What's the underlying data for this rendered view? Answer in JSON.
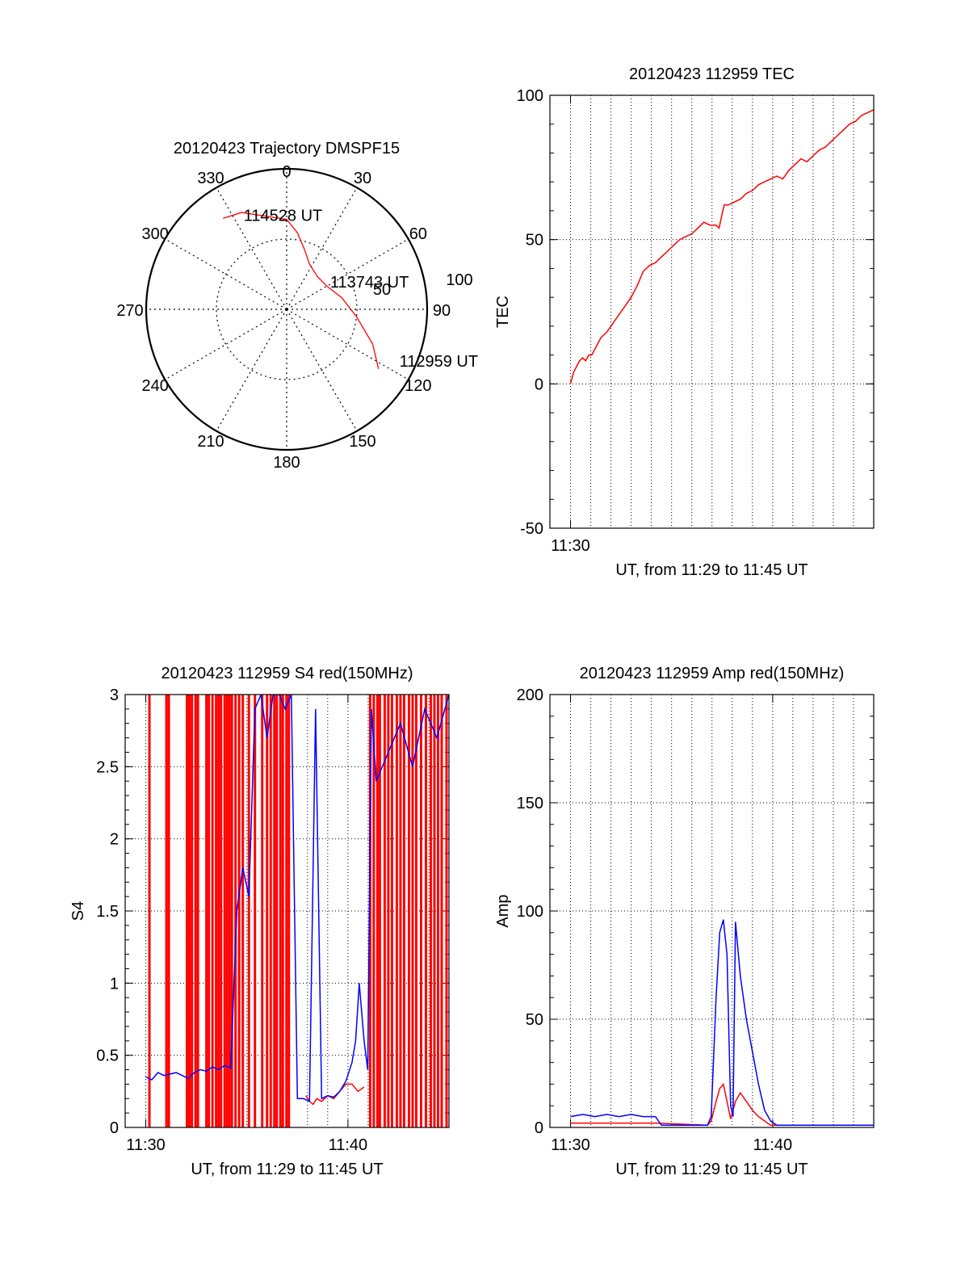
{
  "chart_data": [
    {
      "type": "polar",
      "title": "20120423 Trajectory DMSPF15",
      "angle_labels": [
        "0",
        "30",
        "60",
        "90",
        "120",
        "150",
        "180",
        "210",
        "240",
        "270",
        "300",
        "330"
      ],
      "radial_labels": [
        "50",
        "100"
      ],
      "rlim": [
        0,
        100
      ],
      "grid": true,
      "series": [
        {
          "color": "#ff0000",
          "points": [
            {
              "az": 123,
              "el": 78
            },
            {
              "az": 112,
              "el": 66
            },
            {
              "az": 96,
              "el": 50
            },
            {
              "az": 78,
              "el": 40
            },
            {
              "az": 60,
              "el": 33
            },
            {
              "az": 43,
              "el": 32
            },
            {
              "az": 27,
              "el": 36
            },
            {
              "az": 16,
              "el": 45
            },
            {
              "az": 8,
              "el": 55
            },
            {
              "az": 0,
              "el": 64
            },
            {
              "az": 335,
              "el": 76
            },
            {
              "az": 325,
              "el": 79
            }
          ]
        }
      ],
      "annotations": [
        {
          "text": "114528 UT",
          "az": 334,
          "el": 75
        },
        {
          "text": "113743 UT",
          "az": 55,
          "el": 35
        },
        {
          "text": "112959 UT",
          "az": 115,
          "el": 86
        }
      ]
    },
    {
      "type": "line",
      "title": "20120423 112959 TEC",
      "xlabel": "UT, from 11:29 to 11:45 UT",
      "ylabel": "TEC",
      "xlim": [
        11.483,
        11.75
      ],
      "ylim": [
        -50,
        100
      ],
      "yticks": [
        "-50",
        "0",
        "50",
        "100"
      ],
      "xticks": [
        {
          "value": 11.5,
          "label": "11:30"
        }
      ],
      "grid": true,
      "series": [
        {
          "color": "#ff0000",
          "points": [
            [
              11.5,
              0
            ],
            [
              11.5025,
              4
            ],
            [
              11.505,
              6
            ],
            [
              11.5075,
              8
            ],
            [
              11.51,
              9
            ],
            [
              11.5125,
              8
            ],
            [
              11.515,
              10
            ],
            [
              11.5175,
              10
            ],
            [
              11.52,
              12
            ],
            [
              11.525,
              16
            ],
            [
              11.53,
              18
            ],
            [
              11.535,
              21
            ],
            [
              11.54,
              24
            ],
            [
              11.545,
              27
            ],
            [
              11.55,
              30
            ],
            [
              11.555,
              34
            ],
            [
              11.56,
              39
            ],
            [
              11.565,
              41
            ],
            [
              11.57,
              42
            ],
            [
              11.575,
              44
            ],
            [
              11.58,
              46
            ],
            [
              11.585,
              48
            ],
            [
              11.59,
              50
            ],
            [
              11.595,
              51
            ],
            [
              11.6,
              52
            ],
            [
              11.605,
              54
            ],
            [
              11.61,
              56
            ],
            [
              11.615,
              55
            ],
            [
              11.62,
              55
            ],
            [
              11.6225,
              54
            ],
            [
              11.625,
              59
            ],
            [
              11.6267,
              62
            ],
            [
              11.63,
              62
            ],
            [
              11.635,
              63
            ],
            [
              11.64,
              64
            ],
            [
              11.645,
              66
            ],
            [
              11.65,
              67
            ],
            [
              11.655,
              69
            ],
            [
              11.66,
              70
            ],
            [
              11.665,
              71
            ],
            [
              11.67,
              72
            ],
            [
              11.675,
              71
            ],
            [
              11.68,
              74
            ],
            [
              11.685,
              76
            ],
            [
              11.69,
              78
            ],
            [
              11.695,
              77
            ],
            [
              11.7,
              79
            ],
            [
              11.705,
              81
            ],
            [
              11.71,
              82
            ],
            [
              11.715,
              84
            ],
            [
              11.72,
              86
            ],
            [
              11.725,
              88
            ],
            [
              11.73,
              90
            ],
            [
              11.735,
              91
            ],
            [
              11.74,
              93
            ],
            [
              11.745,
              94
            ],
            [
              11.75,
              95
            ]
          ]
        }
      ]
    },
    {
      "type": "line",
      "title": "20120423 112959 S4 red(150MHz)",
      "xlabel": "UT, from 11:29 to 11:45 UT",
      "ylabel": "S4",
      "xlim": [
        11.483,
        11.75
      ],
      "ylim": [
        0,
        3
      ],
      "yticks": [
        "0",
        "0.5",
        "1",
        "1.5",
        "2",
        "2.5",
        "3"
      ],
      "xticks": [
        {
          "value": 11.5,
          "label": "11:30"
        },
        {
          "value": 11.6667,
          "label": "11:40"
        }
      ],
      "grid": true,
      "series": [
        {
          "color": "#ff0000",
          "style": "spikes",
          "spike_times": [
            11.503,
            11.517,
            11.519,
            11.534,
            11.536,
            11.538,
            11.541,
            11.543,
            11.55,
            11.552,
            11.555,
            11.558,
            11.56,
            11.562,
            11.565,
            11.567,
            11.569,
            11.571,
            11.574,
            11.577,
            11.58,
            11.585,
            11.59,
            11.596,
            11.6,
            11.603,
            11.606,
            11.608,
            11.611,
            11.613,
            11.616,
            11.618,
            11.685,
            11.688,
            11.691,
            11.693,
            11.697,
            11.7,
            11.703,
            11.707,
            11.71,
            11.713,
            11.717,
            11.72,
            11.723,
            11.727,
            11.731,
            11.735,
            11.738,
            11.741,
            11.744,
            11.748
          ]
        },
        {
          "color": "#ff0000",
          "points": [
            [
              11.632,
              0.22
            ],
            [
              11.635,
              0.18
            ],
            [
              11.638,
              0.16
            ],
            [
              11.641,
              0.2
            ],
            [
              11.645,
              0.18
            ],
            [
              11.65,
              0.22
            ],
            [
              11.655,
              0.2
            ],
            [
              11.66,
              0.25
            ],
            [
              11.665,
              0.3
            ],
            [
              11.67,
              0.3
            ],
            [
              11.675,
              0.25
            ],
            [
              11.68,
              0.28
            ]
          ]
        },
        {
          "color": "#0000ff",
          "points": [
            [
              11.5,
              0.35
            ],
            [
              11.505,
              0.33
            ],
            [
              11.51,
              0.38
            ],
            [
              11.515,
              0.36
            ],
            [
              11.52,
              0.37
            ],
            [
              11.525,
              0.38
            ],
            [
              11.53,
              0.36
            ],
            [
              11.535,
              0.34
            ],
            [
              11.54,
              0.38
            ],
            [
              11.545,
              0.4
            ],
            [
              11.55,
              0.39
            ],
            [
              11.555,
              0.42
            ],
            [
              11.56,
              0.4
            ],
            [
              11.565,
              0.43
            ],
            [
              11.57,
              0.41
            ],
            [
              11.575,
              1.5
            ],
            [
              11.58,
              1.8
            ],
            [
              11.585,
              1.6
            ],
            [
              11.59,
              2.9
            ],
            [
              11.595,
              3.0
            ],
            [
              11.6,
              2.7
            ],
            [
              11.605,
              3.0
            ],
            [
              11.61,
              3.0
            ],
            [
              11.615,
              2.9
            ],
            [
              11.62,
              3.0
            ],
            [
              11.625,
              0.2
            ],
            [
              11.63,
              0.2
            ],
            [
              11.635,
              0.18
            ],
            [
              11.64,
              2.9
            ],
            [
              11.645,
              0.2
            ],
            [
              11.65,
              0.22
            ],
            [
              11.655,
              0.21
            ],
            [
              11.66,
              0.25
            ],
            [
              11.665,
              0.32
            ],
            [
              11.67,
              0.45
            ],
            [
              11.673,
              0.6
            ],
            [
              11.676,
              1.0
            ],
            [
              11.68,
              0.6
            ],
            [
              11.683,
              0.4
            ],
            [
              11.686,
              2.9
            ],
            [
              11.69,
              2.4
            ],
            [
              11.7,
              2.6
            ],
            [
              11.71,
              2.8
            ],
            [
              11.72,
              2.5
            ],
            [
              11.73,
              2.9
            ],
            [
              11.74,
              2.7
            ],
            [
              11.75,
              3.0
            ]
          ]
        }
      ]
    },
    {
      "type": "line",
      "title": "20120423 112959 Amp red(150MHz)",
      "xlabel": "UT, from 11:29 to 11:45 UT",
      "ylabel": "Amp",
      "xlim": [
        11.483,
        11.75
      ],
      "ylim": [
        0,
        200
      ],
      "yticks": [
        "0",
        "50",
        "100",
        "150",
        "200"
      ],
      "xticks": [
        {
          "value": 11.5,
          "label": "11:30"
        },
        {
          "value": 11.6667,
          "label": "11:40"
        }
      ],
      "grid": true,
      "series": [
        {
          "color": "#ff0000",
          "points": [
            [
              11.5,
              2
            ],
            [
              11.57,
              2
            ],
            [
              11.613,
              1
            ],
            [
              11.616,
              3
            ],
            [
              11.62,
              12
            ],
            [
              11.623,
              18
            ],
            [
              11.626,
              20
            ],
            [
              11.629,
              12
            ],
            [
              11.632,
              4
            ],
            [
              11.636,
              12
            ],
            [
              11.64,
              16
            ],
            [
              11.645,
              12
            ],
            [
              11.65,
              8
            ],
            [
              11.655,
              5
            ],
            [
              11.66,
              3
            ],
            [
              11.665,
              1
            ],
            [
              11.75,
              1
            ]
          ]
        },
        {
          "color": "#0000ff",
          "points": [
            [
              11.5,
              5
            ],
            [
              11.51,
              6
            ],
            [
              11.52,
              5
            ],
            [
              11.53,
              6
            ],
            [
              11.54,
              5
            ],
            [
              11.55,
              6
            ],
            [
              11.56,
              5
            ],
            [
              11.57,
              5
            ],
            [
              11.575,
              1
            ],
            [
              11.6,
              1
            ],
            [
              11.613,
              1
            ],
            [
              11.616,
              5
            ],
            [
              11.62,
              60
            ],
            [
              11.623,
              90
            ],
            [
              11.626,
              96
            ],
            [
              11.629,
              80
            ],
            [
              11.632,
              10
            ],
            [
              11.634,
              5
            ],
            [
              11.636,
              95
            ],
            [
              11.64,
              70
            ],
            [
              11.645,
              50
            ],
            [
              11.65,
              35
            ],
            [
              11.655,
              20
            ],
            [
              11.66,
              8
            ],
            [
              11.665,
              3
            ],
            [
              11.67,
              1
            ],
            [
              11.75,
              1
            ]
          ]
        }
      ]
    }
  ]
}
